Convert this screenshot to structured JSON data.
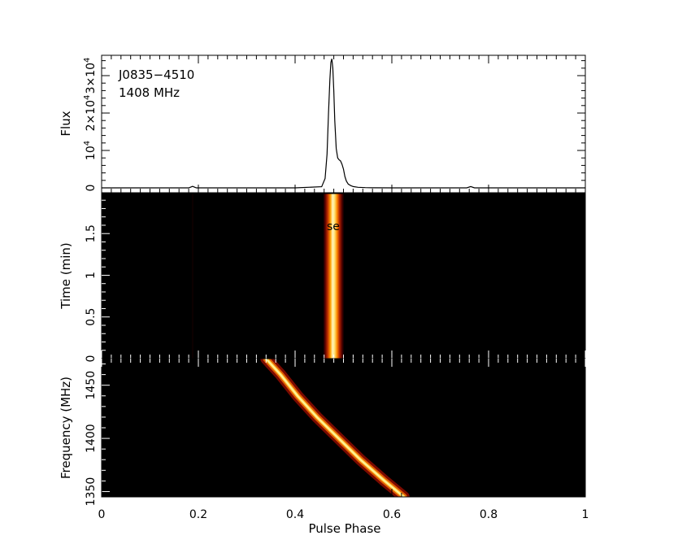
{
  "chart_data": [
    {
      "type": "line",
      "panel": "profile",
      "annotations": [
        "J0835−4510",
        "1408 MHz"
      ],
      "ylabel": "Flux",
      "xlim": [
        0,
        1
      ],
      "ylim": [
        0,
        35000
      ],
      "yticks": [
        {
          "v": 0,
          "label": "0"
        },
        {
          "v": 10000,
          "label": "10",
          "sup": "4"
        },
        {
          "v": 20000,
          "label": "2×10",
          "sup": "4"
        },
        {
          "v": 30000,
          "label": "3×10",
          "sup": "4"
        }
      ],
      "x": [
        0,
        0.18,
        0.188,
        0.196,
        0.3,
        0.4,
        0.455,
        0.462,
        0.466,
        0.469,
        0.472,
        0.474,
        0.476,
        0.478,
        0.48,
        0.482,
        0.485,
        0.488,
        0.491,
        0.494,
        0.497,
        0.5,
        0.503,
        0.506,
        0.51,
        0.515,
        0.52,
        0.53,
        0.545,
        0.56,
        0.6,
        0.755,
        0.763,
        0.771,
        0.8,
        1
      ],
      "values": [
        0,
        0,
        400,
        0,
        0,
        0,
        300,
        2500,
        9000,
        20000,
        29000,
        33500,
        34500,
        32000,
        26000,
        18000,
        10500,
        8000,
        7500,
        7200,
        6300,
        5000,
        3000,
        1800,
        1000,
        600,
        350,
        150,
        60,
        20,
        0,
        0,
        350,
        0,
        0,
        0
      ]
    },
    {
      "type": "heatmap",
      "panel": "time-phase",
      "ylabel": "Time (min)",
      "xlim": [
        0,
        1
      ],
      "ylim": [
        0,
        1.98
      ],
      "yticks": [
        0,
        0.5,
        1,
        1.5
      ],
      "overlay_text": "se",
      "pulse_center": 0.478,
      "colors": [
        "#000000",
        "#4a0000",
        "#a01000",
        "#ff7000",
        "#ffe000",
        "#fffff0"
      ]
    },
    {
      "type": "heatmap",
      "panel": "frequency-phase",
      "ylabel": "Frequency (MHz)",
      "xlabel": "Pulse Phase",
      "xlim": [
        0,
        1
      ],
      "ylim": [
        1345,
        1475
      ],
      "yticks": [
        1350,
        1400,
        1450
      ],
      "xticks": [
        0,
        0.2,
        0.4,
        0.6,
        0.8,
        1
      ],
      "xtick_labels": [
        "0",
        "0.2",
        "0.4",
        "0.6",
        "0.8",
        "1"
      ],
      "sweep": {
        "freq_mhz": [
          1475,
          1460,
          1440,
          1420,
          1400,
          1380,
          1360,
          1345
        ],
        "phase": [
          0.34,
          0.37,
          0.405,
          0.445,
          0.49,
          0.535,
          0.585,
          0.625
        ]
      }
    }
  ]
}
